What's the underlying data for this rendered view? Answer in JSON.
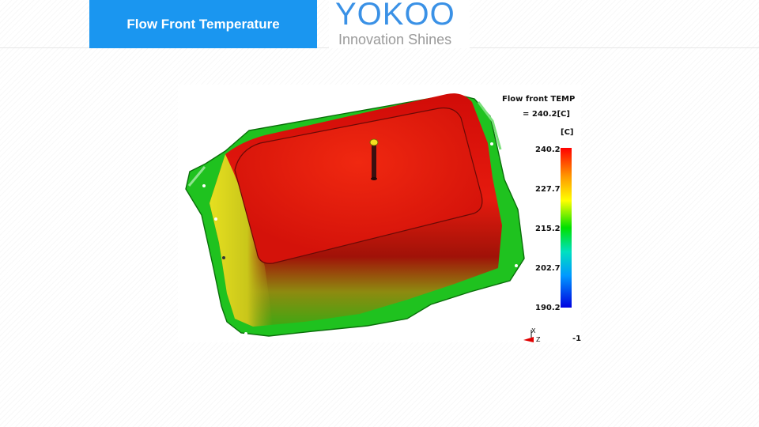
{
  "header": {
    "title": "Flow Front Temperature",
    "logo_word": "YOKOO",
    "logo_tagline": "Innovation Shines",
    "title_bg_color": "#1a96f0",
    "logo_color": "#3a91e6"
  },
  "legend": {
    "title": "Flow front TEMP",
    "value_line": "= 240.2[C]",
    "unit": "[C]",
    "ticks": [
      "240.2",
      "227.7",
      "215.2",
      "202.7",
      "190.2"
    ],
    "max": 240.2,
    "min": 190.2
  },
  "axis_triad": {
    "x_label": "X",
    "z_label": "Z"
  },
  "view_scale": "-1"
}
